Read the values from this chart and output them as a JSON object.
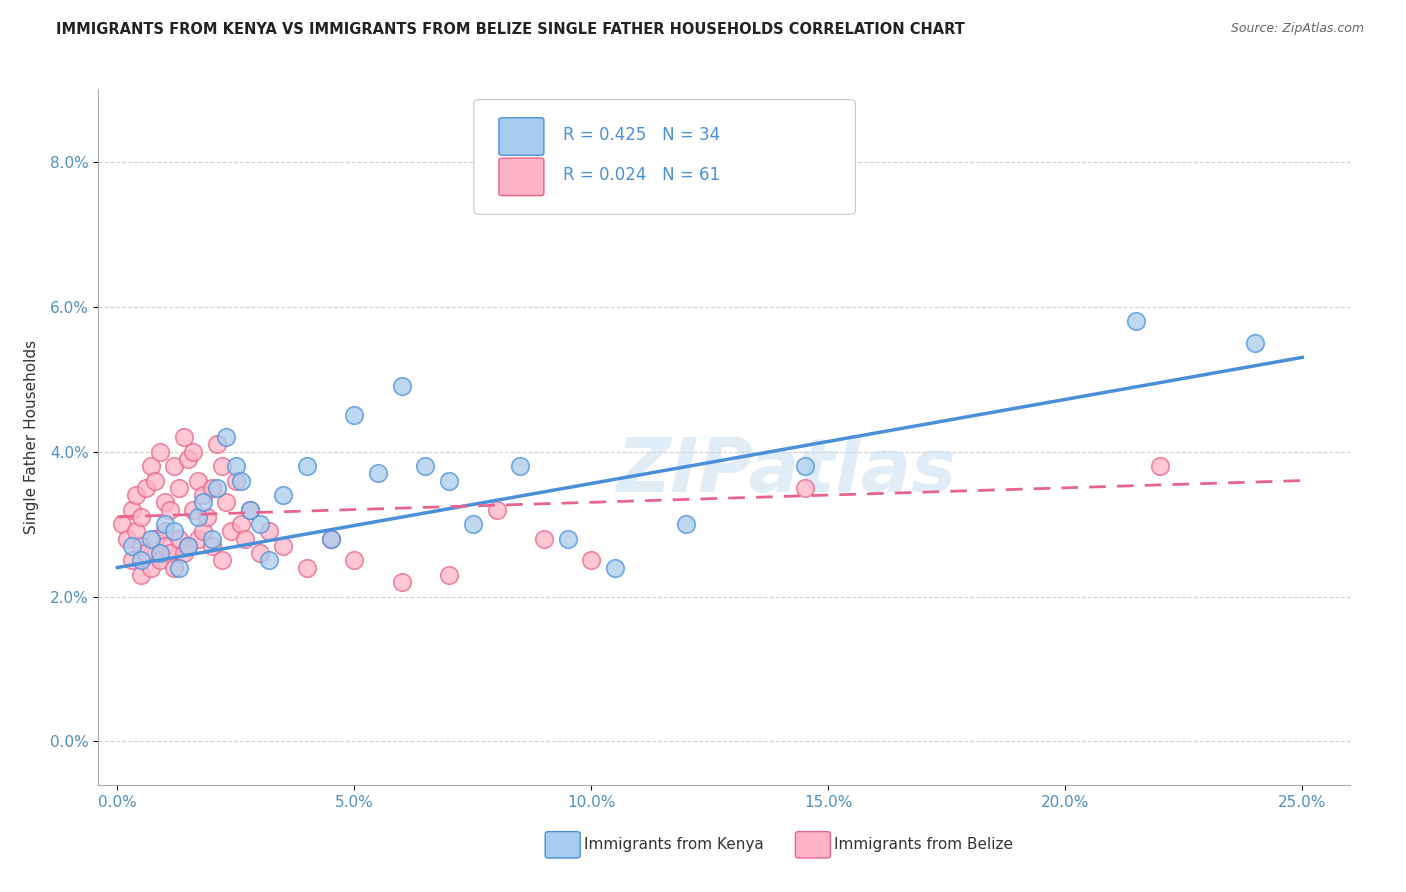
{
  "title": "IMMIGRANTS FROM KENYA VS IMMIGRANTS FROM BELIZE SINGLE FATHER HOUSEHOLDS CORRELATION CHART",
  "source": "Source: ZipAtlas.com",
  "xlabel_ticks": [
    "0.0%",
    "5.0%",
    "10.0%",
    "15.0%",
    "20.0%",
    "25.0%"
  ],
  "xlabel_vals": [
    0.0,
    5.0,
    10.0,
    15.0,
    20.0,
    25.0
  ],
  "ylabel_ticks": [
    "0.0%",
    "2.0%",
    "4.0%",
    "6.0%",
    "8.0%"
  ],
  "ylabel_vals": [
    0.0,
    2.0,
    4.0,
    6.0,
    8.0
  ],
  "xlim": [
    -0.4,
    26.0
  ],
  "ylim": [
    -0.6,
    9.0
  ],
  "ylabel": "Single Father Households",
  "legend_kenya": "Immigrants from Kenya",
  "legend_belize": "Immigrants from Belize",
  "R_kenya": 0.425,
  "N_kenya": 34,
  "R_belize": 0.024,
  "N_belize": 61,
  "color_kenya": "#A8CCEE",
  "color_belize": "#FFB3C6",
  "color_kenya_line": "#4A90D9",
  "color_belize_line": "#E8648C",
  "watermark": "ZIPatlas",
  "kenya_x": [
    0.3,
    0.5,
    0.7,
    0.9,
    1.0,
    1.2,
    1.3,
    1.5,
    1.7,
    1.8,
    2.0,
    2.1,
    2.3,
    2.5,
    2.6,
    2.8,
    3.0,
    3.2,
    3.5,
    4.0,
    4.5,
    5.0,
    5.5,
    6.0,
    6.5,
    7.0,
    7.5,
    8.5,
    9.5,
    10.5,
    12.0,
    14.5,
    21.5,
    24.0
  ],
  "kenya_y": [
    2.7,
    2.5,
    2.8,
    2.6,
    3.0,
    2.9,
    2.4,
    2.7,
    3.1,
    3.3,
    2.8,
    3.5,
    4.2,
    3.8,
    3.6,
    3.2,
    3.0,
    2.5,
    3.4,
    3.8,
    2.8,
    4.5,
    3.7,
    4.9,
    3.8,
    3.6,
    3.0,
    3.8,
    2.8,
    2.4,
    3.0,
    3.8,
    5.8,
    5.5
  ],
  "belize_x": [
    0.1,
    0.2,
    0.3,
    0.3,
    0.4,
    0.4,
    0.5,
    0.5,
    0.5,
    0.6,
    0.6,
    0.7,
    0.7,
    0.8,
    0.8,
    0.9,
    0.9,
    1.0,
    1.0,
    1.0,
    1.1,
    1.1,
    1.2,
    1.2,
    1.3,
    1.3,
    1.4,
    1.4,
    1.5,
    1.5,
    1.6,
    1.6,
    1.7,
    1.7,
    1.8,
    1.8,
    1.9,
    2.0,
    2.0,
    2.1,
    2.2,
    2.2,
    2.3,
    2.4,
    2.5,
    2.6,
    2.7,
    2.8,
    3.0,
    3.2,
    3.5,
    4.0,
    4.5,
    5.0,
    6.0,
    7.0,
    8.0,
    9.0,
    10.0,
    14.5,
    22.0
  ],
  "belize_y": [
    3.0,
    2.8,
    2.5,
    3.2,
    2.9,
    3.4,
    2.7,
    3.1,
    2.3,
    2.6,
    3.5,
    2.4,
    3.8,
    2.8,
    3.6,
    2.5,
    4.0,
    2.9,
    3.3,
    2.7,
    3.2,
    2.6,
    3.8,
    2.4,
    3.5,
    2.8,
    4.2,
    2.6,
    3.9,
    2.7,
    4.0,
    3.2,
    3.6,
    2.8,
    3.4,
    2.9,
    3.1,
    3.5,
    2.7,
    4.1,
    3.8,
    2.5,
    3.3,
    2.9,
    3.6,
    3.0,
    2.8,
    3.2,
    2.6,
    2.9,
    2.7,
    2.4,
    2.8,
    2.5,
    2.2,
    2.3,
    3.2,
    2.8,
    2.5,
    3.5,
    3.8
  ],
  "kenya_line_x": [
    0.0,
    25.0
  ],
  "kenya_line_y": [
    2.4,
    5.3
  ],
  "belize_line_x": [
    0.0,
    25.0
  ],
  "belize_line_y": [
    3.1,
    3.6
  ]
}
